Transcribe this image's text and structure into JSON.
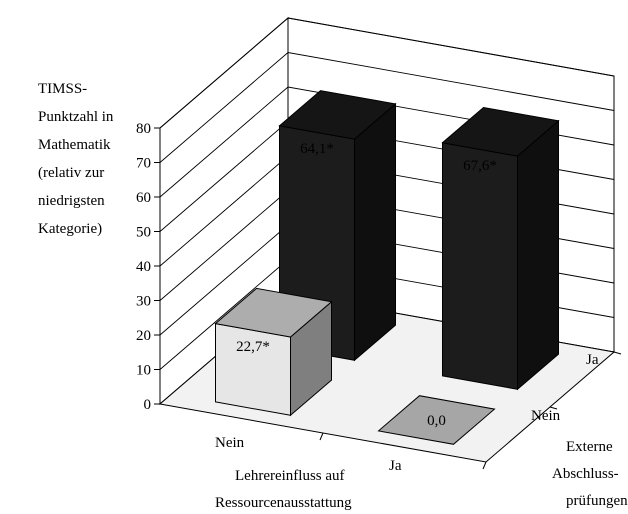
{
  "chart_data": {
    "type": "bar",
    "subtype": "3d-column-grid",
    "ylabel_lines": [
      "TIMSS-",
      "Punktzahl in",
      "Mathematik",
      "(relativ zur",
      "niedrigsten",
      "Kategorie)"
    ],
    "ylim": [
      0,
      80
    ],
    "yticks": [
      0,
      10,
      20,
      30,
      40,
      50,
      60,
      70,
      80
    ],
    "x_axis": {
      "label_lines": [
        "Lehrereinfluss auf",
        "Ressourcenausstattung"
      ],
      "categories": [
        "Nein",
        "Ja"
      ]
    },
    "depth_axis": {
      "label_lines": [
        "Externe",
        "Abschluss-",
        "prüfungen"
      ],
      "categories": [
        "Nein",
        "Ja"
      ]
    },
    "grid": true,
    "bars": [
      {
        "x": "Nein",
        "depth": "Nein",
        "value": 22.7,
        "label": "22,7*",
        "color": "#e6e6e6",
        "text_color": "#000000"
      },
      {
        "x": "Ja",
        "depth": "Nein",
        "value": 0.0,
        "label": "0,0",
        "color": "#a6a6a6",
        "text_color": "#000000"
      },
      {
        "x": "Nein",
        "depth": "Ja",
        "value": 64.1,
        "label": "64,1*",
        "color": "#1c1c1c",
        "text_color": "#ffffff"
      },
      {
        "x": "Ja",
        "depth": "Ja",
        "value": 67.6,
        "label": "67,6*",
        "color": "#1c1c1c",
        "text_color": "#ffffff"
      }
    ]
  }
}
